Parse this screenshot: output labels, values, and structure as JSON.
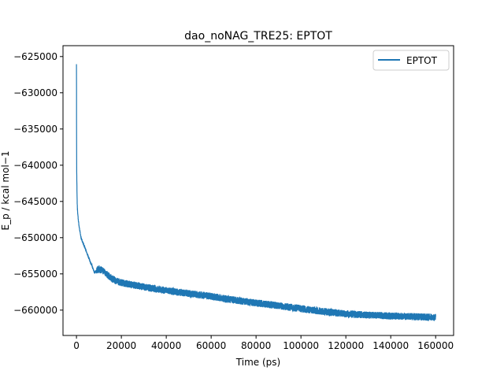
{
  "chart_data": {
    "type": "line",
    "title": "dao_noNAG_TRE25: EPTOT",
    "xlabel": "Time (ps)",
    "ylabel": "E_p / kcal mol−1",
    "xlim": [
      -6000,
      168000
    ],
    "ylim": [
      -663500,
      -623500
    ],
    "x_ticks": [
      0,
      20000,
      40000,
      60000,
      80000,
      100000,
      120000,
      140000,
      160000
    ],
    "x_tick_labels": [
      "0",
      "20000",
      "40000",
      "60000",
      "80000",
      "100000",
      "120000",
      "140000",
      "160000"
    ],
    "y_ticks": [
      -625000,
      -630000,
      -635000,
      -640000,
      -645000,
      -650000,
      -655000,
      -660000
    ],
    "y_tick_labels": [
      "−625000",
      "−630000",
      "−635000",
      "−640000",
      "−645000",
      "−650000",
      "−655000",
      "−660000"
    ],
    "grid": false,
    "legend": {
      "position": "top-right",
      "entries": [
        "EPTOT"
      ]
    },
    "series": [
      {
        "name": "EPTOT",
        "color": "#1f77b4",
        "x": [
          0,
          100,
          200,
          300,
          500,
          800,
          1200,
          2000,
          4000,
          6000,
          8000,
          10000,
          12000,
          14000,
          16000,
          18000,
          20000,
          25000,
          30000,
          40000,
          50000,
          60000,
          70000,
          80000,
          90000,
          100000,
          110000,
          120000,
          130000,
          140000,
          150000,
          160000
        ],
        "y": [
          -625900,
          -641000,
          -643000,
          -645000,
          -646500,
          -647500,
          -648500,
          -650000,
          -651600,
          -653200,
          -654800,
          -654300,
          -654600,
          -655200,
          -655700,
          -656000,
          -656200,
          -656500,
          -656800,
          -657300,
          -657700,
          -658100,
          -658600,
          -659000,
          -659400,
          -659800,
          -660200,
          -660500,
          -660700,
          -660800,
          -660900,
          -661000
        ],
        "noise_band": 500
      }
    ]
  }
}
